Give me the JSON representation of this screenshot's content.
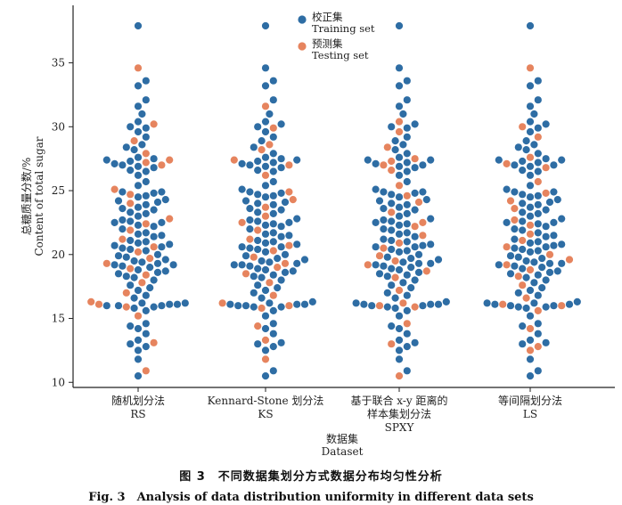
{
  "chart_data": {
    "type": "swarm",
    "ylabel": "总糖质量分数/%",
    "ylabel_en": "Content of total sugar",
    "xlabel": "数据集",
    "xlabel_en": "Dataset",
    "ylim": [
      9.6,
      39.5
    ],
    "yticks": [
      10,
      15,
      20,
      25,
      30,
      35
    ],
    "legend": [
      {
        "name": "校正集",
        "name_en": "Training set",
        "color": "#2e6da4"
      },
      {
        "name": "预测集",
        "name_en": "Testing set",
        "color": "#e6845e"
      }
    ],
    "categories": [
      {
        "line1": "随机划分法",
        "line2": "RS"
      },
      {
        "line1": "Kennard-Stone 划分法",
        "line2": "KS"
      },
      {
        "line1": "基于联合 x-y 距离的",
        "line2": "样本集划分法",
        "line3": "SPXY"
      },
      {
        "line1": "等间隔划分法",
        "line2": "LS"
      }
    ],
    "series_values": {
      "all": [
        37.9,
        34.6,
        33.6,
        33.2,
        32.1,
        31.6,
        31.0,
        30.4,
        30.2,
        30.0,
        29.9,
        29.6,
        29.2,
        28.9,
        28.6,
        28.4,
        28.2,
        27.9,
        27.6,
        27.5,
        27.4,
        27.4,
        27.3,
        27.2,
        27.1,
        27.0,
        27.0,
        26.9,
        26.8,
        26.6,
        26.5,
        26.2,
        25.7,
        25.4,
        25.1,
        24.9,
        24.9,
        24.8,
        24.7,
        24.6,
        24.5,
        24.3,
        24.2,
        24.1,
        24.0,
        23.9,
        23.7,
        23.6,
        23.5,
        23.3,
        23.2,
        23.0,
        22.8,
        22.7,
        22.6,
        22.5,
        22.5,
        22.4,
        22.3,
        22.2,
        22.0,
        21.9,
        21.7,
        21.6,
        21.5,
        21.4,
        21.2,
        21.1,
        21.0,
        20.9,
        20.8,
        20.7,
        20.6,
        20.6,
        20.5,
        20.4,
        20.3,
        20.2,
        20.0,
        19.9,
        19.8,
        19.7,
        19.6,
        19.5,
        19.4,
        19.3,
        19.3,
        19.2,
        19.2,
        19.1,
        19.0,
        18.9,
        18.8,
        18.7,
        18.6,
        18.5,
        18.4,
        18.3,
        18.2,
        18.0,
        17.8,
        17.6,
        17.4,
        17.2,
        17.0,
        16.8,
        16.6,
        16.3,
        16.2,
        16.2,
        16.1,
        16.1,
        16.1,
        16.0,
        16.0,
        16.0,
        15.9,
        15.9,
        15.8,
        15.6,
        15.2,
        14.6,
        14.4,
        14.2,
        13.8,
        13.3,
        13.1,
        13.0,
        12.8,
        12.5,
        11.8,
        10.9,
        10.5
      ],
      "testing_index_sets": [
        [
          1,
          8,
          13,
          17,
          20,
          23,
          26,
          34,
          38,
          44,
          52,
          57,
          61,
          66,
          72,
          77,
          81,
          86,
          91,
          96,
          100,
          104,
          107,
          112,
          116,
          120,
          126,
          131
        ],
        [
          5,
          10,
          14,
          16,
          21,
          26,
          31,
          36,
          41,
          46,
          51,
          56,
          61,
          66,
          71,
          76,
          80,
          85,
          90,
          95,
          100,
          105,
          109,
          114,
          118,
          122,
          125,
          130
        ],
        [
          7,
          11,
          15,
          19,
          22,
          25,
          29,
          33,
          39,
          43,
          49,
          55,
          59,
          64,
          69,
          74,
          79,
          83,
          88,
          93,
          98,
          103,
          108,
          113,
          117,
          121,
          127,
          132
        ],
        [
          1,
          9,
          12,
          18,
          24,
          28,
          32,
          37,
          42,
          47,
          53,
          58,
          63,
          67,
          73,
          78,
          82,
          87,
          92,
          97,
          101,
          106,
          110,
          115,
          119,
          123,
          128,
          129
        ]
      ]
    }
  },
  "caption": {
    "cn": "图 3　不同数据集划分方式数据分布均匀性分析",
    "en": "Fig. 3　Analysis of data distribution uniformity in different data sets"
  }
}
